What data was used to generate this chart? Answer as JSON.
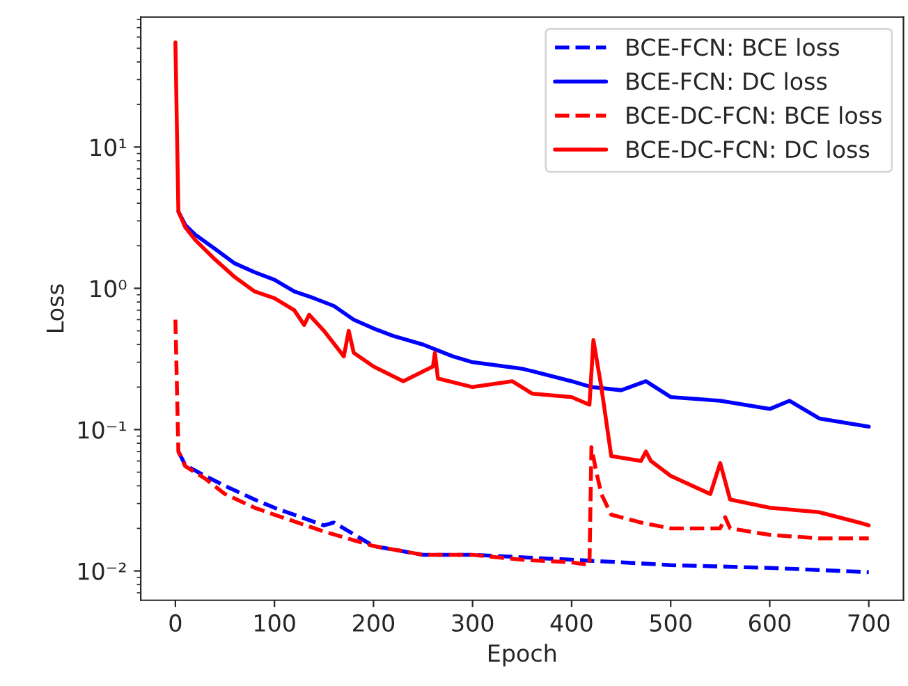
{
  "chart_data": {
    "type": "line",
    "xlabel": "Epoch",
    "ylabel": "Loss",
    "log": "y",
    "grid": false,
    "legend": "top right",
    "marker": "none",
    "xlim": [
      -35,
      735
    ],
    "xticks": [
      0,
      100,
      200,
      300,
      400,
      500,
      600,
      700
    ],
    "ylim": [
      0.0062,
      83
    ],
    "yticks": [
      {
        "value": 0.01,
        "label": "10⁻²"
      },
      {
        "value": 0.1,
        "label": "10⁻¹"
      },
      {
        "value": 1,
        "label": "10⁰"
      },
      {
        "value": 10,
        "label": "10¹"
      }
    ],
    "series": [
      {
        "name": "BCE-FCN: BCE loss",
        "color": "#0000ff",
        "line_style": "dashed",
        "x": [
          3,
          10,
          30,
          50,
          80,
          100,
          150,
          160,
          200,
          250,
          300,
          400,
          450,
          500,
          600,
          700
        ],
        "values": [
          0.07,
          0.056,
          0.047,
          0.04,
          0.032,
          0.028,
          0.021,
          0.022,
          0.015,
          0.013,
          0.013,
          0.012,
          0.0115,
          0.011,
          0.0105,
          0.0098
        ]
      },
      {
        "name": "BCE-FCN: DC loss",
        "color": "#0000ff",
        "line_style": "solid",
        "x": [
          3,
          10,
          20,
          40,
          60,
          80,
          100,
          120,
          140,
          160,
          180,
          200,
          220,
          250,
          280,
          300,
          350,
          400,
          420,
          450,
          475,
          500,
          550,
          600,
          620,
          650,
          700
        ],
        "values": [
          3.5,
          2.8,
          2.4,
          1.9,
          1.5,
          1.3,
          1.15,
          0.95,
          0.85,
          0.75,
          0.6,
          0.52,
          0.46,
          0.4,
          0.33,
          0.3,
          0.27,
          0.22,
          0.2,
          0.19,
          0.22,
          0.17,
          0.16,
          0.14,
          0.16,
          0.12,
          0.105
        ]
      },
      {
        "name": "BCE-DC-FCN: BCE loss",
        "color": "#ff0000",
        "line_style": "dashed",
        "x": [
          0,
          3,
          10,
          30,
          50,
          80,
          100,
          150,
          200,
          250,
          300,
          350,
          400,
          418,
          420,
          425,
          430,
          440,
          470,
          500,
          550,
          555,
          560,
          600,
          650,
          700
        ],
        "values": [
          0.6,
          0.07,
          0.055,
          0.045,
          0.035,
          0.028,
          0.025,
          0.019,
          0.015,
          0.013,
          0.013,
          0.012,
          0.0115,
          0.011,
          0.075,
          0.05,
          0.035,
          0.025,
          0.022,
          0.02,
          0.02,
          0.024,
          0.02,
          0.018,
          0.017,
          0.017
        ]
      },
      {
        "name": "BCE-DC-FCN: DC loss",
        "color": "#ff0000",
        "line_style": "solid",
        "x": [
          0,
          3,
          10,
          20,
          40,
          60,
          80,
          100,
          120,
          130,
          135,
          150,
          170,
          175,
          180,
          200,
          230,
          260,
          262,
          265,
          300,
          340,
          360,
          400,
          418,
          422,
          430,
          440,
          470,
          475,
          480,
          500,
          540,
          550,
          560,
          600,
          650,
          690,
          700
        ],
        "values": [
          55,
          3.5,
          2.7,
          2.2,
          1.6,
          1.2,
          0.95,
          0.85,
          0.7,
          0.55,
          0.65,
          0.5,
          0.33,
          0.5,
          0.35,
          0.28,
          0.22,
          0.28,
          0.35,
          0.23,
          0.2,
          0.22,
          0.18,
          0.17,
          0.15,
          0.43,
          0.2,
          0.065,
          0.06,
          0.07,
          0.06,
          0.047,
          0.035,
          0.058,
          0.032,
          0.028,
          0.026,
          0.022,
          0.021
        ]
      }
    ]
  }
}
